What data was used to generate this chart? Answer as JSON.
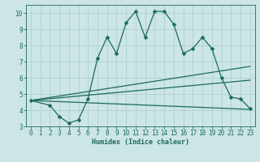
{
  "xlabel": "Humidex (Indice chaleur)",
  "bg_color": "#cce5e5",
  "grid_color": "#aacccc",
  "line_color": "#1a6b5a",
  "xlim": [
    -0.5,
    23.5
  ],
  "ylim": [
    3,
    10.5
  ],
  "xticks": [
    0,
    1,
    2,
    3,
    4,
    5,
    6,
    7,
    8,
    9,
    10,
    11,
    12,
    13,
    14,
    15,
    16,
    17,
    18,
    19,
    20,
    21,
    22,
    23
  ],
  "yticks": [
    3,
    4,
    5,
    6,
    7,
    8,
    9,
    10
  ],
  "line1_x": [
    0,
    2,
    3,
    4,
    5,
    6,
    7,
    8,
    9,
    10,
    11,
    12,
    13,
    14,
    15,
    16,
    17,
    18,
    19,
    20,
    21,
    22,
    23
  ],
  "line1_y": [
    4.6,
    4.3,
    3.6,
    3.2,
    3.4,
    4.7,
    7.2,
    8.5,
    7.5,
    9.4,
    10.1,
    8.5,
    10.1,
    10.1,
    9.3,
    7.5,
    7.8,
    8.5,
    7.8,
    6.0,
    4.8,
    4.7,
    4.1
  ],
  "line2_x": [
    0,
    23
  ],
  "line2_y": [
    4.6,
    6.7
  ],
  "line3_x": [
    0,
    23
  ],
  "line3_y": [
    4.6,
    5.85
  ],
  "line4_x": [
    0,
    23
  ],
  "line4_y": [
    4.6,
    4.05
  ],
  "markersize": 2.5,
  "linewidth": 0.9,
  "tick_fontsize": 5.5,
  "xlabel_fontsize": 6.0
}
